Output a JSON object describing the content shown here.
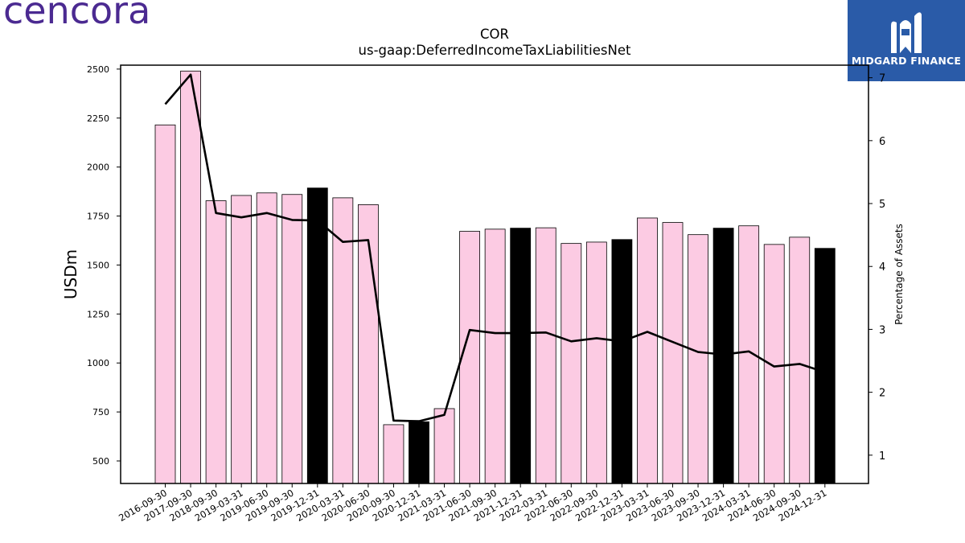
{
  "brand": {
    "logo_text": "cencora"
  },
  "badge": {
    "label": "MIDGARD FINANCE",
    "icon": "midgard-m-logo-icon",
    "color": "#2a5ba8"
  },
  "chart_data": {
    "type": "bar",
    "title": "COR",
    "subtitle": "us-gaap:DeferredIncomeTaxLiabilitiesNet",
    "ylabel": "USDm",
    "y2label": "Percentage of Assets",
    "ylim": [
      385,
      2520
    ],
    "y2lim": [
      0.55,
      7.2
    ],
    "yticks": [
      500,
      750,
      1000,
      1250,
      1500,
      1750,
      2000,
      2250,
      2500
    ],
    "y2ticks": [
      1,
      2,
      3,
      4,
      5,
      6,
      7
    ],
    "categories": [
      "2016-09-30",
      "2017-09-30",
      "2018-09-30",
      "2019-03-31",
      "2019-06-30",
      "2019-09-30",
      "2019-12-31",
      "2020-03-31",
      "2020-06-30",
      "2020-09-30",
      "2020-12-31",
      "2021-03-31",
      "2021-06-30",
      "2021-09-30",
      "2021-12-31",
      "2022-03-31",
      "2022-06-30",
      "2022-09-30",
      "2022-12-31",
      "2023-03-31",
      "2023-06-30",
      "2023-09-30",
      "2023-12-31",
      "2024-03-31",
      "2024-06-30",
      "2024-09-30",
      "2024-12-31"
    ],
    "values": [
      2215,
      2490,
      1828,
      1855,
      1868,
      1860,
      1893,
      1843,
      1808,
      685,
      700,
      767,
      1672,
      1683,
      1688,
      1690,
      1610,
      1617,
      1630,
      1740,
      1717,
      1655,
      1688,
      1700,
      1605,
      1642,
      1585
    ],
    "pct_of_assets": [
      6.58,
      7.05,
      4.85,
      4.78,
      4.85,
      4.74,
      4.73,
      4.39,
      4.42,
      1.55,
      1.54,
      1.64,
      2.99,
      2.94,
      2.94,
      2.95,
      2.81,
      2.86,
      2.81,
      2.96,
      2.8,
      2.64,
      2.6,
      2.65,
      2.41,
      2.45,
      2.32
    ],
    "highlight": [
      false,
      false,
      false,
      false,
      false,
      false,
      true,
      false,
      false,
      false,
      true,
      false,
      false,
      false,
      true,
      false,
      false,
      false,
      true,
      false,
      false,
      false,
      true,
      false,
      false,
      false,
      true
    ],
    "bar_color": "#fccbe3",
    "highlight_color": "#000000",
    "line_color": "#000000",
    "grid": false
  }
}
